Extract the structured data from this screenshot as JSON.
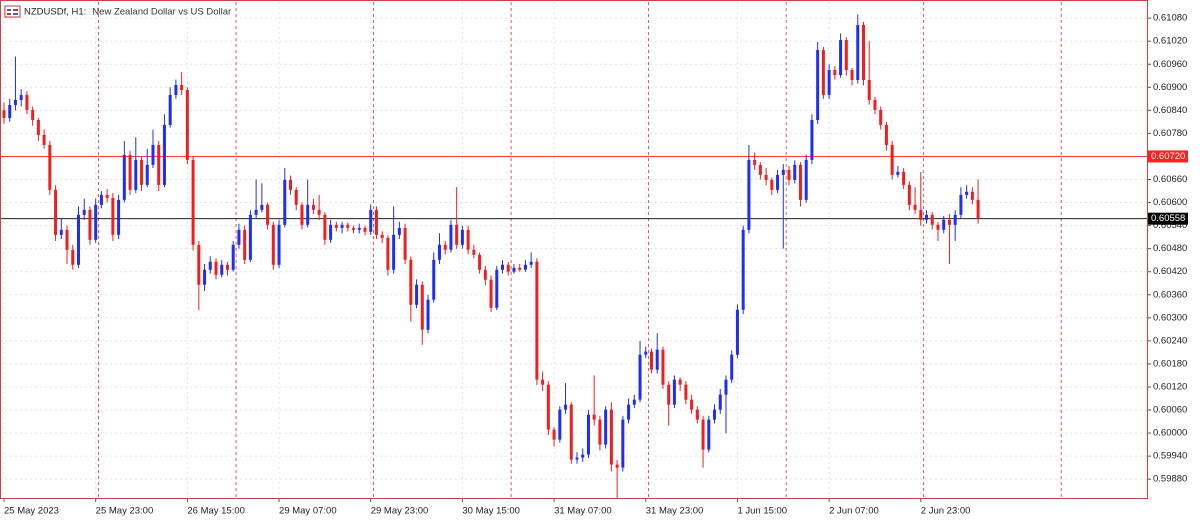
{
  "chart_data": {
    "type": "candlestick",
    "title": "NZDUSDf, H1:",
    "subtitle": "New Zealand Dollar vs US Dollar",
    "up_color": "#1f2ff0",
    "down_color": "#f01f1f",
    "grid": true,
    "categories": [
      "25 May 2023",
      null,
      null,
      null,
      null,
      null,
      null,
      null,
      null,
      null,
      null,
      null,
      null,
      null,
      null,
      null,
      "25 May 23:00",
      null,
      null,
      null,
      null,
      null,
      null,
      null,
      null,
      null,
      null,
      null,
      null,
      null,
      null,
      null,
      "26 May 15:00",
      null,
      null,
      null,
      null,
      null,
      null,
      null,
      null,
      null,
      null,
      null,
      null,
      null,
      null,
      null,
      "29 May 07:00",
      null,
      null,
      null,
      null,
      null,
      null,
      null,
      null,
      null,
      null,
      null,
      null,
      null,
      null,
      null,
      "29 May 23:00",
      null,
      null,
      null,
      null,
      null,
      null,
      null,
      null,
      null,
      null,
      null,
      null,
      null,
      null,
      null,
      "30 May 15:00",
      null,
      null,
      null,
      null,
      null,
      null,
      null,
      null,
      null,
      null,
      null,
      null,
      null,
      null,
      null,
      "31 May 07:00",
      null,
      null,
      null,
      null,
      null,
      null,
      null,
      null,
      null,
      null,
      null,
      null,
      null,
      null,
      null,
      "31 May 23:00",
      null,
      null,
      null,
      null,
      null,
      null,
      null,
      null,
      null,
      null,
      null,
      null,
      null,
      null,
      null,
      "1 Jun 15:00",
      null,
      null,
      null,
      null,
      null,
      null,
      null,
      null,
      null,
      null,
      null,
      null,
      null,
      null,
      null,
      "2 Jun 07:00",
      null,
      null,
      null,
      null,
      null,
      null,
      null,
      null,
      null,
      null,
      null,
      null,
      null,
      null,
      null,
      "2 Jun 23:00",
      null,
      null,
      null,
      null,
      null,
      null,
      null,
      null,
      null,
      null
    ],
    "candles": [
      [
        0.6084,
        0.6086,
        0.60805,
        0.6082
      ],
      [
        0.6082,
        0.6087,
        0.6081,
        0.60854
      ],
      [
        0.60854,
        0.6098,
        0.6084,
        0.60867
      ],
      [
        0.60867,
        0.60895,
        0.6085,
        0.6088
      ],
      [
        0.6088,
        0.6089,
        0.6083,
        0.60841
      ],
      [
        0.60841,
        0.6085,
        0.608,
        0.60815
      ],
      [
        0.60815,
        0.6082,
        0.6076,
        0.60776
      ],
      [
        0.60776,
        0.6079,
        0.6074,
        0.6075
      ],
      [
        0.6075,
        0.6076,
        0.6062,
        0.60633
      ],
      [
        0.60633,
        0.60645,
        0.605,
        0.60516
      ],
      [
        0.60516,
        0.6056,
        0.60505,
        0.60529
      ],
      [
        0.60529,
        0.6054,
        0.6044,
        0.60477
      ],
      [
        0.60477,
        0.6049,
        0.60425,
        0.60438
      ],
      [
        0.60438,
        0.6059,
        0.6043,
        0.60568
      ],
      [
        0.60568,
        0.6061,
        0.60555,
        0.60581
      ],
      [
        0.60581,
        0.6059,
        0.6049,
        0.60503
      ],
      [
        0.60503,
        0.6061,
        0.60495,
        0.60594
      ],
      [
        0.60594,
        0.6063,
        0.60585,
        0.6062
      ],
      [
        0.6062,
        0.60635,
        0.606,
        0.60612
      ],
      [
        0.60612,
        0.60625,
        0.605,
        0.60516
      ],
      [
        0.60516,
        0.6062,
        0.60505,
        0.60607
      ],
      [
        0.60607,
        0.6076,
        0.606,
        0.60724
      ],
      [
        0.60724,
        0.60735,
        0.6062,
        0.60633
      ],
      [
        0.60633,
        0.6077,
        0.60625,
        0.60711
      ],
      [
        0.60711,
        0.6072,
        0.6063,
        0.60646
      ],
      [
        0.60646,
        0.6074,
        0.6064,
        0.60698
      ],
      [
        0.60698,
        0.6079,
        0.6069,
        0.6075
      ],
      [
        0.6075,
        0.6076,
        0.6063,
        0.60646
      ],
      [
        0.60646,
        0.6083,
        0.6064,
        0.60802
      ],
      [
        0.60802,
        0.609,
        0.60795,
        0.6088
      ],
      [
        0.6088,
        0.6092,
        0.6087,
        0.60906
      ],
      [
        0.60906,
        0.6094,
        0.6088,
        0.60893
      ],
      [
        0.60893,
        0.609,
        0.607,
        0.60711
      ],
      [
        0.60711,
        0.6072,
        0.60475,
        0.6049
      ],
      [
        0.6049,
        0.605,
        0.6032,
        0.60386
      ],
      [
        0.60386,
        0.6044,
        0.6037,
        0.60425
      ],
      [
        0.60425,
        0.6046,
        0.60415,
        0.60446
      ],
      [
        0.60446,
        0.60455,
        0.604,
        0.60412
      ],
      [
        0.60412,
        0.6045,
        0.60405,
        0.60438
      ],
      [
        0.60438,
        0.60445,
        0.6041,
        0.60425
      ],
      [
        0.60425,
        0.605,
        0.6042,
        0.6049
      ],
      [
        0.6049,
        0.60545,
        0.6048,
        0.60529
      ],
      [
        0.60529,
        0.6054,
        0.6044,
        0.60451
      ],
      [
        0.60451,
        0.6058,
        0.60445,
        0.60568
      ],
      [
        0.60568,
        0.6066,
        0.6056,
        0.60581
      ],
      [
        0.60581,
        0.6065,
        0.60575,
        0.60594
      ],
      [
        0.60594,
        0.606,
        0.6053,
        0.60542
      ],
      [
        0.60542,
        0.6055,
        0.60425,
        0.60438
      ],
      [
        0.60438,
        0.60555,
        0.6043,
        0.60542
      ],
      [
        0.60542,
        0.6069,
        0.60535,
        0.60659
      ],
      [
        0.60659,
        0.6067,
        0.6062,
        0.60633
      ],
      [
        0.60633,
        0.6064,
        0.6058,
        0.60594
      ],
      [
        0.60594,
        0.606,
        0.6053,
        0.60542
      ],
      [
        0.60542,
        0.6066,
        0.60535,
        0.60594
      ],
      [
        0.60594,
        0.6061,
        0.6057,
        0.60581
      ],
      [
        0.60581,
        0.6062,
        0.60555,
        0.60568
      ],
      [
        0.60568,
        0.60575,
        0.6049,
        0.60503
      ],
      [
        0.60503,
        0.60555,
        0.60495,
        0.60542
      ],
      [
        0.60542,
        0.6055,
        0.60525,
        0.60534
      ],
      [
        0.60534,
        0.6055,
        0.6052,
        0.60542
      ],
      [
        0.60542,
        0.60548,
        0.60525,
        0.60534
      ],
      [
        0.60534,
        0.6054,
        0.6052,
        0.60529
      ],
      [
        0.60529,
        0.60545,
        0.6052,
        0.60534
      ],
      [
        0.60534,
        0.6054,
        0.60515,
        0.60524
      ],
      [
        0.60524,
        0.60595,
        0.60515,
        0.60581
      ],
      [
        0.60581,
        0.6059,
        0.60505,
        0.60516
      ],
      [
        0.60516,
        0.60525,
        0.60495,
        0.60508
      ],
      [
        0.60508,
        0.60515,
        0.6041,
        0.60425
      ],
      [
        0.60425,
        0.6059,
        0.60415,
        0.60516
      ],
      [
        0.60516,
        0.6055,
        0.60505,
        0.60534
      ],
      [
        0.60534,
        0.60545,
        0.6044,
        0.60451
      ],
      [
        0.60451,
        0.6046,
        0.6029,
        0.60334
      ],
      [
        0.60334,
        0.604,
        0.60325,
        0.60386
      ],
      [
        0.60386,
        0.60395,
        0.6023,
        0.60269
      ],
      [
        0.60269,
        0.6036,
        0.6026,
        0.60347
      ],
      [
        0.60347,
        0.6047,
        0.6034,
        0.60451
      ],
      [
        0.60451,
        0.6052,
        0.6044,
        0.6049
      ],
      [
        0.6049,
        0.605,
        0.60465,
        0.60477
      ],
      [
        0.60477,
        0.60555,
        0.6047,
        0.60542
      ],
      [
        0.60542,
        0.6064,
        0.6048,
        0.6049
      ],
      [
        0.6049,
        0.6054,
        0.6048,
        0.60529
      ],
      [
        0.60529,
        0.6054,
        0.60465,
        0.60477
      ],
      [
        0.60477,
        0.6049,
        0.60455,
        0.60464
      ],
      [
        0.60464,
        0.6047,
        0.60415,
        0.60425
      ],
      [
        0.60425,
        0.60435,
        0.60385,
        0.60399
      ],
      [
        0.60399,
        0.6041,
        0.60315,
        0.60326
      ],
      [
        0.60326,
        0.60435,
        0.6032,
        0.60425
      ],
      [
        0.60425,
        0.6045,
        0.60415,
        0.60438
      ],
      [
        0.60438,
        0.60445,
        0.6041,
        0.6042
      ],
      [
        0.6042,
        0.6044,
        0.60415,
        0.6043
      ],
      [
        0.6043,
        0.6044,
        0.6042,
        0.60425
      ],
      [
        0.60425,
        0.6045,
        0.6042,
        0.60438
      ],
      [
        0.60438,
        0.6047,
        0.6043,
        0.60446
      ],
      [
        0.60446,
        0.60455,
        0.60125,
        0.60139
      ],
      [
        0.60139,
        0.6016,
        0.6011,
        0.60126
      ],
      [
        0.60126,
        0.60135,
        0.59995,
        0.60009
      ],
      [
        0.60009,
        0.60015,
        0.59965,
        0.59983
      ],
      [
        0.59983,
        0.6007,
        0.59975,
        0.60061
      ],
      [
        0.60061,
        0.6013,
        0.6005,
        0.60074
      ],
      [
        0.60074,
        0.6008,
        0.5992,
        0.59931
      ],
      [
        0.59931,
        0.5995,
        0.5992,
        0.59936
      ],
      [
        0.59936,
        0.5996,
        0.59925,
        0.59944
      ],
      [
        0.59944,
        0.6006,
        0.59935,
        0.60048
      ],
      [
        0.60048,
        0.6015,
        0.6002,
        0.60035
      ],
      [
        0.60035,
        0.60045,
        0.59955,
        0.5997
      ],
      [
        0.5997,
        0.6007,
        0.5996,
        0.60061
      ],
      [
        0.60061,
        0.6008,
        0.599,
        0.59918
      ],
      [
        0.59918,
        0.5993,
        0.5983,
        0.5991
      ],
      [
        0.5991,
        0.60045,
        0.599,
        0.60035
      ],
      [
        0.60035,
        0.6009,
        0.60025,
        0.60074
      ],
      [
        0.60074,
        0.601,
        0.60065,
        0.60087
      ],
      [
        0.60087,
        0.6024,
        0.6008,
        0.60204
      ],
      [
        0.60204,
        0.60225,
        0.60195,
        0.60212
      ],
      [
        0.60212,
        0.6022,
        0.60155,
        0.60165
      ],
      [
        0.60165,
        0.6026,
        0.60155,
        0.60217
      ],
      [
        0.60217,
        0.60225,
        0.60115,
        0.60126
      ],
      [
        0.60126,
        0.60135,
        0.6002,
        0.60074
      ],
      [
        0.60074,
        0.6015,
        0.60065,
        0.60139
      ],
      [
        0.60139,
        0.60145,
        0.6011,
        0.60126
      ],
      [
        0.60126,
        0.60135,
        0.60075,
        0.60087
      ],
      [
        0.60087,
        0.601,
        0.6005,
        0.60061
      ],
      [
        0.60061,
        0.6007,
        0.60025,
        0.60035
      ],
      [
        0.60035,
        0.60045,
        0.5991,
        0.59957
      ],
      [
        0.59957,
        0.60045,
        0.5995,
        0.60035
      ],
      [
        0.60035,
        0.60075,
        0.60025,
        0.60061
      ],
      [
        0.60061,
        0.60115,
        0.6005,
        0.601
      ],
      [
        0.601,
        0.6015,
        0.6,
        0.60139
      ],
      [
        0.60139,
        0.60215,
        0.6013,
        0.60204
      ],
      [
        0.60204,
        0.60335,
        0.60195,
        0.60321
      ],
      [
        0.60321,
        0.6054,
        0.6031,
        0.60529
      ],
      [
        0.60529,
        0.6075,
        0.6052,
        0.60711
      ],
      [
        0.60711,
        0.6073,
        0.60685,
        0.60698
      ],
      [
        0.60698,
        0.60705,
        0.6066,
        0.60672
      ],
      [
        0.60672,
        0.6069,
        0.60645,
        0.60659
      ],
      [
        0.60659,
        0.60665,
        0.6062,
        0.60633
      ],
      [
        0.60633,
        0.60685,
        0.60625,
        0.60672
      ],
      [
        0.60672,
        0.607,
        0.6048,
        0.60685
      ],
      [
        0.60685,
        0.60695,
        0.60645,
        0.60659
      ],
      [
        0.60659,
        0.6071,
        0.6065,
        0.60698
      ],
      [
        0.60698,
        0.60705,
        0.6059,
        0.60607
      ],
      [
        0.60607,
        0.60725,
        0.606,
        0.60711
      ],
      [
        0.60711,
        0.6083,
        0.607,
        0.60815
      ],
      [
        0.60815,
        0.61018,
        0.60805,
        0.60997
      ],
      [
        0.60997,
        0.61005,
        0.6087,
        0.6088
      ],
      [
        0.6088,
        0.6096,
        0.6087,
        0.60945
      ],
      [
        0.60945,
        0.60955,
        0.6092,
        0.60932
      ],
      [
        0.60932,
        0.6104,
        0.60925,
        0.61023
      ],
      [
        0.61023,
        0.6103,
        0.6093,
        0.60945
      ],
      [
        0.60945,
        0.6095,
        0.60905,
        0.60919
      ],
      [
        0.60919,
        0.6109,
        0.6091,
        0.61062
      ],
      [
        0.61062,
        0.6107,
        0.60905,
        0.60919
      ],
      [
        0.60919,
        0.6102,
        0.60855,
        0.60867
      ],
      [
        0.60867,
        0.60875,
        0.6083,
        0.60841
      ],
      [
        0.60841,
        0.6085,
        0.6079,
        0.60802
      ],
      [
        0.60802,
        0.6081,
        0.60735,
        0.6075
      ],
      [
        0.6075,
        0.6076,
        0.6066,
        0.60672
      ],
      [
        0.60672,
        0.60695,
        0.60665,
        0.6068
      ],
      [
        0.6068,
        0.6069,
        0.60635,
        0.60646
      ],
      [
        0.60646,
        0.60655,
        0.6058,
        0.60594
      ],
      [
        0.60594,
        0.6064,
        0.6057,
        0.60581
      ],
      [
        0.60581,
        0.6068,
        0.6054,
        0.60555
      ],
      [
        0.60555,
        0.6058,
        0.60545,
        0.60568
      ],
      [
        0.60568,
        0.60575,
        0.6053,
        0.60542
      ],
      [
        0.60542,
        0.6055,
        0.605,
        0.60529
      ],
      [
        0.60529,
        0.60565,
        0.6052,
        0.60555
      ],
      [
        0.60555,
        0.6057,
        0.6044,
        0.60542
      ],
      [
        0.60542,
        0.6058,
        0.605,
        0.60568
      ],
      [
        0.60568,
        0.6064,
        0.6056,
        0.6062
      ],
      [
        0.6062,
        0.60645,
        0.6061,
        0.60628
      ],
      [
        0.60628,
        0.6064,
        0.60595,
        0.60607
      ],
      [
        0.60607,
        0.6066,
        0.60545,
        0.60558
      ]
    ],
    "ylim": [
      0.59831,
      0.61122
    ],
    "yticks": [
      {
        "value": 0.6108,
        "label": "0.61080"
      },
      {
        "value": 0.6102,
        "label": "0.61020"
      },
      {
        "value": 0.6096,
        "label": "0.60960"
      },
      {
        "value": 0.609,
        "label": "0.60900"
      },
      {
        "value": 0.6084,
        "label": "0.60840"
      },
      {
        "value": 0.6078,
        "label": "0.60780"
      },
      {
        "value": 0.6066,
        "label": "0.60660"
      },
      {
        "value": 0.606,
        "label": "0.60600"
      },
      {
        "value": 0.6054,
        "label": "0.60540"
      },
      {
        "value": 0.6048,
        "label": "0.60480"
      },
      {
        "value": 0.6042,
        "label": "0.60420"
      },
      {
        "value": 0.6036,
        "label": "0.60360"
      },
      {
        "value": 0.603,
        "label": "0.60300"
      },
      {
        "value": 0.6024,
        "label": "0.60240"
      },
      {
        "value": 0.6018,
        "label": "0.60180"
      },
      {
        "value": 0.6012,
        "label": "0.60120"
      },
      {
        "value": 0.6006,
        "label": "0.60060"
      },
      {
        "value": 0.6,
        "label": "0.60000"
      },
      {
        "value": 0.5994,
        "label": "0.59940"
      },
      {
        "value": 0.5988,
        "label": "0.59880"
      }
    ],
    "hlines": [
      {
        "value": 0.6072,
        "label": "0.60720",
        "color": "#ff2020"
      },
      {
        "value": 0.60558,
        "label": "0.60558",
        "color": "#000000"
      }
    ]
  }
}
